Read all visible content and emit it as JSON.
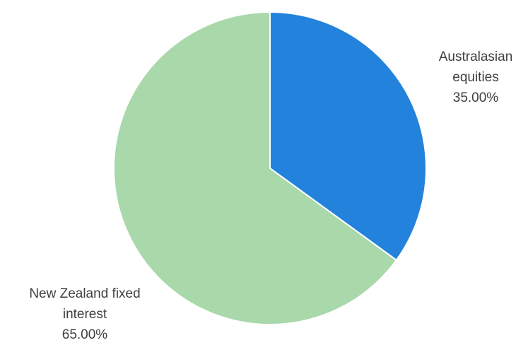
{
  "chart_data": {
    "type": "pie",
    "title": "",
    "slices": [
      {
        "label_lines": [
          "Australasian",
          "equities"
        ],
        "value": 35.0,
        "value_label": "35.00%",
        "color": "#2383DC"
      },
      {
        "label_lines": [
          "New Zealand fixed",
          "interest"
        ],
        "value": 65.0,
        "value_label": "65.00%",
        "color": "#A9D8AB"
      }
    ],
    "start_angle_deg": 0,
    "direction": "clockwise",
    "legend": "none"
  }
}
